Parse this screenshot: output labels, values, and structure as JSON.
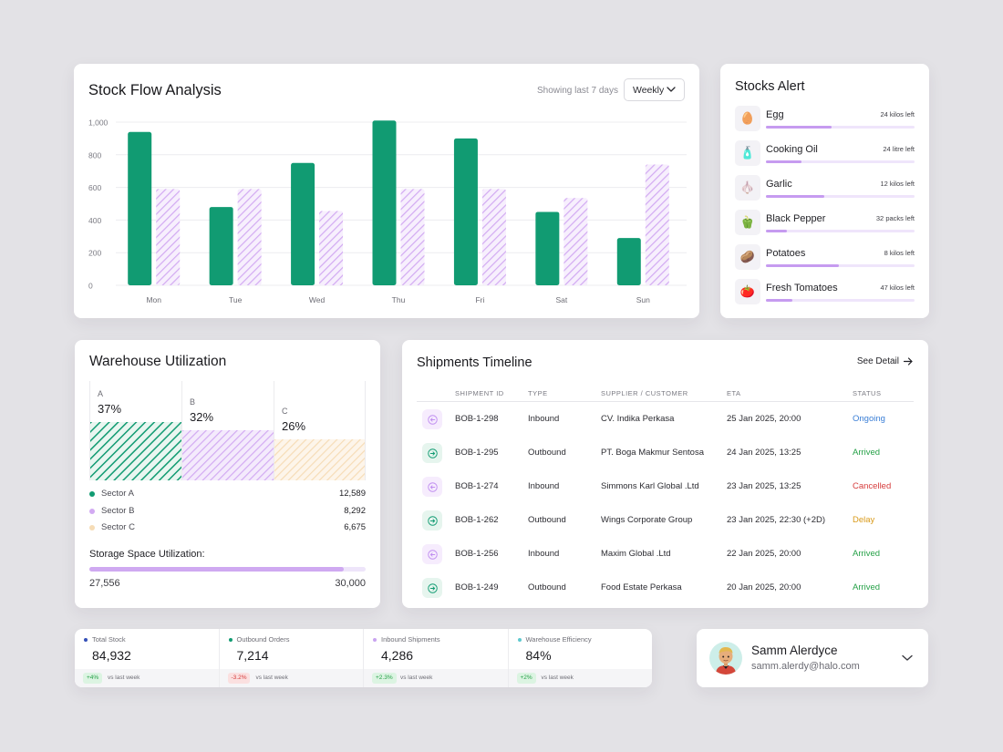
{
  "stock_flow": {
    "title": "Stock Flow Analysis",
    "showing": "Showing last 7 days",
    "period": "Weekly"
  },
  "chart_data": {
    "type": "bar",
    "categories": [
      "Mon",
      "Tue",
      "Wed",
      "Thu",
      "Fri",
      "Sat",
      "Sun"
    ],
    "series": [
      {
        "values": [
          940,
          480,
          750,
          1010,
          900,
          450,
          290
        ],
        "color": "#119b72"
      },
      {
        "values": [
          590,
          590,
          455,
          590,
          590,
          535,
          740
        ],
        "color": "#d8b4f4",
        "pattern": "hatched"
      }
    ],
    "yticks": [
      "1,000",
      "800",
      "600",
      "400",
      "200",
      "0"
    ],
    "ylim": [
      0,
      1000
    ],
    "grid": true
  },
  "stocks_alert": {
    "title": "Stocks Alert",
    "items": [
      {
        "name": "Egg",
        "left": "24 kilos left",
        "level": 0.44,
        "icon": "egg-icon",
        "glyph": "🥚"
      },
      {
        "name": "Cooking Oil",
        "left": "24 litre left",
        "level": 0.24,
        "icon": "oil-bottle-icon",
        "glyph": "🧴"
      },
      {
        "name": "Garlic",
        "left": "12 kilos left",
        "level": 0.39,
        "icon": "garlic-icon",
        "glyph": "🧄"
      },
      {
        "name": "Black Pepper",
        "left": "32 packs left",
        "level": 0.14,
        "icon": "black-pepper-icon",
        "glyph": "🫑"
      },
      {
        "name": "Potatoes",
        "left": "8 kilos left",
        "level": 0.49,
        "icon": "potato-icon",
        "glyph": "🥔"
      },
      {
        "name": "Fresh Tomatoes",
        "left": "47 kilos left",
        "level": 0.18,
        "icon": "tomato-icon",
        "glyph": "🍅"
      }
    ]
  },
  "warehouse": {
    "title": "Warehouse Utilization",
    "sectors": [
      {
        "letter": "A",
        "pct": "37%",
        "share": 0.37,
        "name": "Sector A",
        "value": "12,589",
        "color": "#119b72"
      },
      {
        "letter": "B",
        "pct": "32%",
        "share": 0.32,
        "name": "Sector B",
        "value": "8,292",
        "color": "#d2aaf2"
      },
      {
        "letter": "C",
        "pct": "26%",
        "share": 0.26,
        "name": "Sector C",
        "value": "6,675",
        "color": "#f6dcb6"
      }
    ],
    "storage_title": "Storage Space Utilization:",
    "storage_current": "27,556",
    "storage_max": "30,000",
    "storage_level": 0.92
  },
  "shipments": {
    "title": "Shipments Timeline",
    "see_detail": "See Detail",
    "columns": [
      "SHIPMENT ID",
      "TYPE",
      "SUPPLIER / CUSTOMER",
      "ETA",
      "STATUS"
    ],
    "rows": [
      {
        "id": "BOB-1-298",
        "type": "Inbound",
        "party": "CV. Indika Perkasa",
        "eta": "25 Jan 2025, 20:00",
        "status": "Ongoing",
        "status_color": "#3b7fd6"
      },
      {
        "id": "BOB-1-295",
        "type": "Outbound",
        "party": "PT. Boga Makmur Sentosa",
        "eta": "24 Jan 2025, 13:25",
        "status": "Arrived",
        "status_color": "#26a148"
      },
      {
        "id": "BOB-1-274",
        "type": "Inbound",
        "party": "Simmons Karl Global .Ltd",
        "eta": "23 Jan 2025, 13:25",
        "status": "Cancelled",
        "status_color": "#d63c3c"
      },
      {
        "id": "BOB-1-262",
        "type": "Outbound",
        "party": "Wings Corporate Group",
        "eta": "23 Jan 2025, 22:30 (+2D)",
        "status": "Delay",
        "status_color": "#d99a1a"
      },
      {
        "id": "BOB-1-256",
        "type": "Inbound",
        "party": "Maxim Global .Ltd",
        "eta": "22 Jan 2025, 20:00",
        "status": "Arrived",
        "status_color": "#26a148"
      },
      {
        "id": "BOB-1-249",
        "type": "Outbound",
        "party": "Food Estate Perkasa",
        "eta": "20 Jan 2025, 20:00",
        "status": "Arrived",
        "status_color": "#26a148"
      }
    ]
  },
  "kpis": [
    {
      "label": "Total Stock",
      "value": "84,932",
      "change": "+4%",
      "vs": "vs last week",
      "dot": "#3450b8",
      "trend": "up"
    },
    {
      "label": "Outbound Orders",
      "value": "7,214",
      "change": "-3.2%",
      "vs": "vs last week",
      "dot": "#119b72",
      "trend": "down"
    },
    {
      "label": "Inbound Shipments",
      "value": "4,286",
      "change": "+2.3%",
      "vs": "vs last week",
      "dot": "#c9a4f0",
      "trend": "up"
    },
    {
      "label": "Warehouse Efficiency",
      "value": "84%",
      "change": "+2%",
      "vs": "vs last week",
      "dot": "#5fc9cf",
      "trend": "up"
    }
  ],
  "profile": {
    "name": "Samm Alerdyce",
    "email": "samm.alerdy@halo.com"
  }
}
